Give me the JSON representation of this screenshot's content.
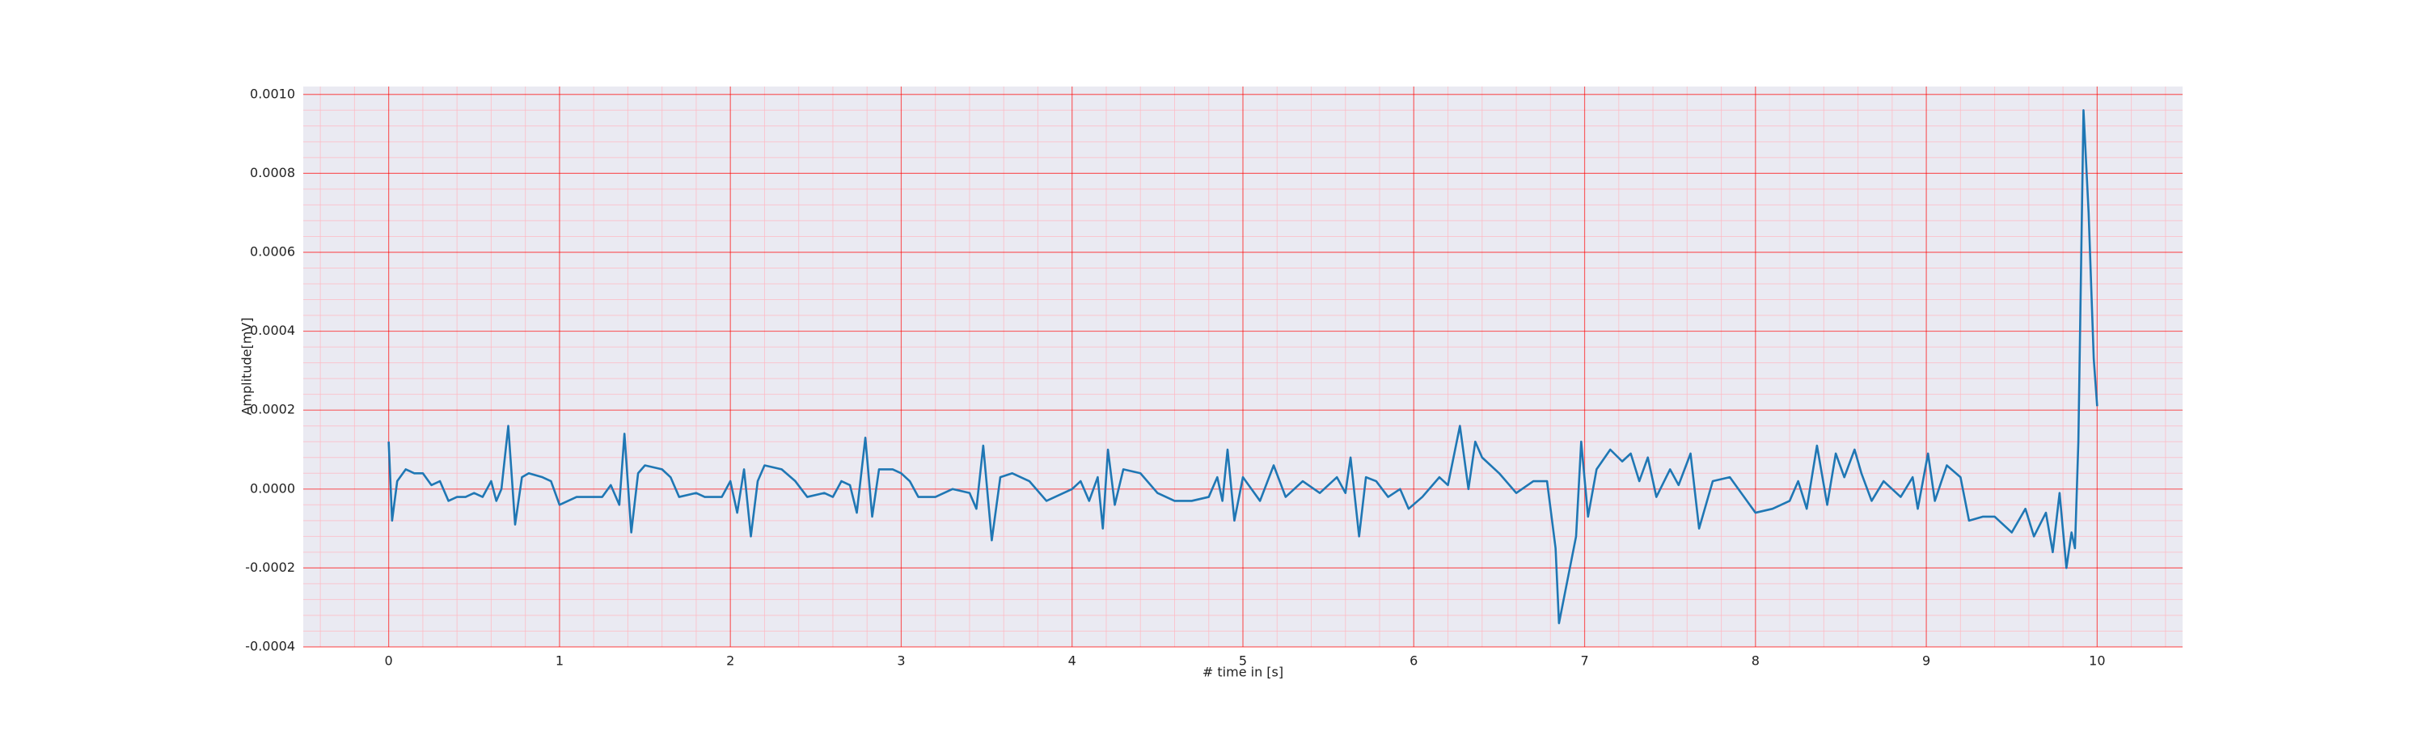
{
  "chart_data": {
    "type": "line",
    "xlabel": "# time in [s]",
    "ylabel": "Amplitude[mV]",
    "xlim": [
      -0.5,
      10.5
    ],
    "ylim": [
      -0.0004,
      0.00102
    ],
    "xticks": [
      0,
      1,
      2,
      3,
      4,
      5,
      6,
      7,
      8,
      9,
      10
    ],
    "yticks": [
      -0.0004,
      -0.0002,
      {
        "value": 0,
        "label": "0.0000"
      },
      0.0002,
      0.0004,
      0.0006,
      0.0008,
      {
        "value": 0.001,
        "label": "0.0010"
      }
    ],
    "grid": true,
    "minor_grid": true,
    "background": "#eaeaf2",
    "grid_color": "#ff0000",
    "minor_grid_color": "#ffb6c1",
    "series": [
      {
        "color": "#1f77b4",
        "x": [
          0,
          0.02,
          0.05,
          0.1,
          0.15,
          0.2,
          0.25,
          0.3,
          0.35,
          0.4,
          0.45,
          0.5,
          0.55,
          0.6,
          0.63,
          0.66,
          0.7,
          0.74,
          0.78,
          0.82,
          0.9,
          0.95,
          1,
          1.05,
          1.1,
          1.2,
          1.25,
          1.3,
          1.35,
          1.38,
          1.42,
          1.46,
          1.5,
          1.6,
          1.65,
          1.7,
          1.8,
          1.85,
          1.95,
          2,
          2.04,
          2.08,
          2.12,
          2.16,
          2.2,
          2.3,
          2.38,
          2.45,
          2.55,
          2.6,
          2.65,
          2.7,
          2.74,
          2.79,
          2.83,
          2.87,
          2.95,
          3,
          3.05,
          3.1,
          3.2,
          3.3,
          3.4,
          3.44,
          3.48,
          3.53,
          3.58,
          3.65,
          3.75,
          3.85,
          3.95,
          4,
          4.05,
          4.1,
          4.15,
          4.18,
          4.21,
          4.25,
          4.3,
          4.4,
          4.5,
          4.6,
          4.7,
          4.8,
          4.85,
          4.88,
          4.91,
          4.95,
          5,
          5.05,
          5.1,
          5.18,
          5.25,
          5.35,
          5.45,
          5.55,
          5.6,
          5.63,
          5.68,
          5.72,
          5.78,
          5.85,
          5.92,
          5.97,
          6.05,
          6.15,
          6.2,
          6.27,
          6.32,
          6.36,
          6.4,
          6.5,
          6.6,
          6.7,
          6.78,
          6.83,
          6.85,
          6.9,
          6.95,
          6.98,
          7.02,
          7.07,
          7.15,
          7.22,
          7.27,
          7.32,
          7.37,
          7.42,
          7.5,
          7.55,
          7.62,
          7.67,
          7.75,
          7.85,
          8,
          8.1,
          8.2,
          8.25,
          8.3,
          8.36,
          8.42,
          8.47,
          8.52,
          8.58,
          8.62,
          8.68,
          8.75,
          8.85,
          8.92,
          8.95,
          9.01,
          9.05,
          9.12,
          9.2,
          9.25,
          9.33,
          9.4,
          9.5,
          9.58,
          9.63,
          9.7,
          9.74,
          9.78,
          9.82,
          9.85,
          9.87,
          9.89,
          9.92,
          9.95,
          9.98,
          10
        ],
        "values": [
          0.00012,
          -8e-05,
          2e-05,
          5e-05,
          4e-05,
          4e-05,
          1e-05,
          2e-05,
          -3e-05,
          -2e-05,
          -2e-05,
          -1e-05,
          -2e-05,
          2e-05,
          -3e-05,
          0,
          0.00016,
          -9e-05,
          3e-05,
          4e-05,
          3e-05,
          2e-05,
          -4e-05,
          -3e-05,
          -2e-05,
          -2e-05,
          -2e-05,
          1e-05,
          -4e-05,
          0.00014,
          -0.00011,
          4e-05,
          6e-05,
          5e-05,
          3e-05,
          -2e-05,
          -1e-05,
          -2e-05,
          -2e-05,
          2e-05,
          -6e-05,
          5e-05,
          -0.00012,
          2e-05,
          6e-05,
          5e-05,
          2e-05,
          -2e-05,
          -1e-05,
          -2e-05,
          2e-05,
          1e-05,
          -6e-05,
          0.00013,
          -7e-05,
          5e-05,
          5e-05,
          4e-05,
          2e-05,
          -2e-05,
          -2e-05,
          0,
          -1e-05,
          -5e-05,
          0.00011,
          -0.00013,
          3e-05,
          4e-05,
          2e-05,
          -3e-05,
          -1e-05,
          0,
          2e-05,
          -3e-05,
          3e-05,
          -0.0001,
          0.0001,
          -4e-05,
          5e-05,
          4e-05,
          -1e-05,
          -3e-05,
          -3e-05,
          -2e-05,
          3e-05,
          -3e-05,
          0.0001,
          -8e-05,
          3e-05,
          0,
          -3e-05,
          6e-05,
          -2e-05,
          2e-05,
          -1e-05,
          3e-05,
          -1e-05,
          8e-05,
          -0.00012,
          3e-05,
          2e-05,
          -2e-05,
          0,
          -5e-05,
          -2e-05,
          3e-05,
          1e-05,
          0.00016,
          0,
          0.00012,
          8e-05,
          4e-05,
          -1e-05,
          2e-05,
          2e-05,
          -0.00015,
          -0.00034,
          -0.00023,
          -0.00012,
          0.00012,
          -7e-05,
          5e-05,
          0.0001,
          7e-05,
          9e-05,
          2e-05,
          8e-05,
          -2e-05,
          5e-05,
          1e-05,
          9e-05,
          -0.0001,
          2e-05,
          3e-05,
          -6e-05,
          -5e-05,
          -3e-05,
          2e-05,
          -5e-05,
          0.00011,
          -4e-05,
          9e-05,
          3e-05,
          0.0001,
          4e-05,
          -3e-05,
          2e-05,
          -2e-05,
          3e-05,
          -5e-05,
          9e-05,
          -3e-05,
          6e-05,
          3e-05,
          -8e-05,
          -7e-05,
          -7e-05,
          -0.00011,
          -5e-05,
          -0.00012,
          -6e-05,
          -0.00016,
          -1e-05,
          -0.0002,
          -0.00011,
          -0.00015,
          0.00012,
          0.00096,
          0.0007,
          0.00033,
          0.00021
        ]
      }
    ]
  }
}
